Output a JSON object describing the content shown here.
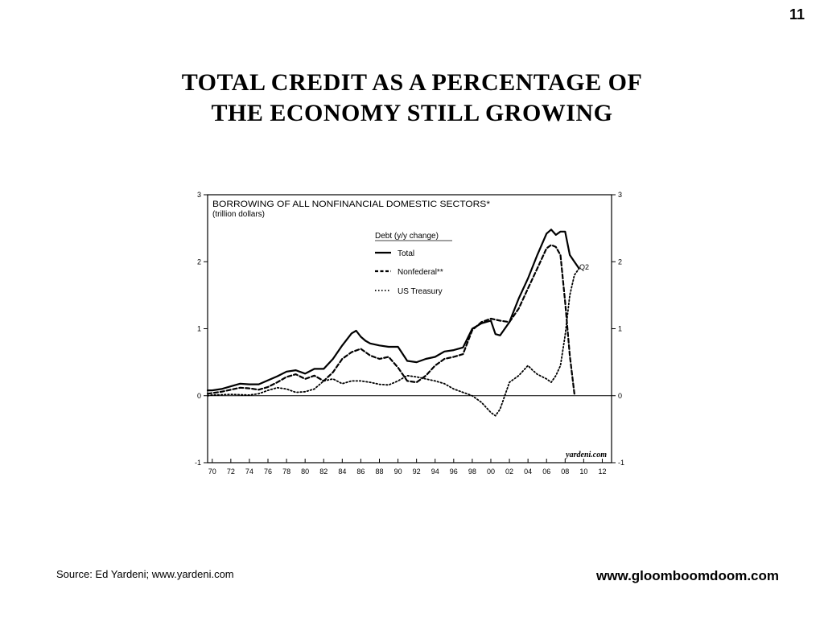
{
  "slide": {
    "number": "11",
    "title_line1": "TOTAL  CREDIT  AS  A  PERCENTAGE  OF",
    "title_line2": "THE  ECONOMY  STILL  GROWING",
    "source": "Source: Ed Yardeni; www.yardeni.com",
    "website": "www.gloomboomdoom.com"
  },
  "chart_data": {
    "type": "line",
    "title": "BORROWING OF ALL NONFINANCIAL DOMESTIC SECTORS*",
    "subtitle": "(trillion dollars)",
    "legend_title": "Debt (y/y change)",
    "legend_position": "top-center",
    "annotation": "Q2",
    "watermark": "yardeni.com",
    "xlabel": "",
    "ylabel": "",
    "xlim": [
      1969.5,
      2013
    ],
    "ylim": [
      -1,
      3
    ],
    "x_ticks": [
      "70",
      "72",
      "74",
      "76",
      "78",
      "80",
      "82",
      "84",
      "86",
      "88",
      "90",
      "92",
      "94",
      "96",
      "98",
      "00",
      "02",
      "04",
      "06",
      "08",
      "10",
      "12"
    ],
    "y_ticks": [
      "-1",
      "0",
      "1",
      "2",
      "3"
    ],
    "grid": false,
    "series": [
      {
        "name": "Total",
        "style": "solid",
        "color": "#000000",
        "x": [
          1969.5,
          1970,
          1971,
          1972,
          1973,
          1974,
          1975,
          1976,
          1977,
          1978,
          1979,
          1980,
          1981,
          1982,
          1983,
          1984,
          1985,
          1985.5,
          1986,
          1986.5,
          1987,
          1988,
          1989,
          1990,
          1991,
          1992,
          1993,
          1994,
          1995,
          1996,
          1997,
          1998,
          1999,
          2000,
          2000.5,
          2001,
          2002,
          2003,
          2004,
          2005,
          2006,
          2006.5,
          2007,
          2007.5,
          2008,
          2008.5,
          2009,
          2009.5
        ],
        "values": [
          0.08,
          0.08,
          0.1,
          0.14,
          0.18,
          0.17,
          0.17,
          0.23,
          0.29,
          0.36,
          0.38,
          0.33,
          0.4,
          0.4,
          0.55,
          0.75,
          0.93,
          0.97,
          0.88,
          0.82,
          0.78,
          0.75,
          0.73,
          0.73,
          0.52,
          0.5,
          0.55,
          0.58,
          0.66,
          0.68,
          0.72,
          1.0,
          1.08,
          1.12,
          0.92,
          0.9,
          1.1,
          1.45,
          1.75,
          2.1,
          2.42,
          2.48,
          2.4,
          2.45,
          2.45,
          2.1,
          2.0,
          1.9
        ]
      },
      {
        "name": "Nonfederal**",
        "style": "dashed",
        "color": "#000000",
        "x": [
          1969.5,
          1970,
          1971,
          1972,
          1973,
          1974,
          1975,
          1976,
          1977,
          1978,
          1979,
          1980,
          1981,
          1982,
          1983,
          1984,
          1985,
          1986,
          1987,
          1988,
          1989,
          1990,
          1991,
          1992,
          1993,
          1994,
          1995,
          1996,
          1997,
          1998,
          1999,
          2000,
          2001,
          2002,
          2003,
          2004,
          2005,
          2006,
          2006.5,
          2007,
          2007.5,
          2008,
          2008.5,
          2009
        ],
        "values": [
          0.03,
          0.04,
          0.06,
          0.09,
          0.12,
          0.11,
          0.09,
          0.13,
          0.2,
          0.28,
          0.32,
          0.25,
          0.3,
          0.22,
          0.35,
          0.55,
          0.65,
          0.7,
          0.6,
          0.55,
          0.58,
          0.42,
          0.22,
          0.2,
          0.3,
          0.45,
          0.55,
          0.58,
          0.62,
          0.98,
          1.1,
          1.15,
          1.12,
          1.1,
          1.3,
          1.6,
          1.9,
          2.2,
          2.25,
          2.22,
          2.1,
          1.4,
          0.6,
          0.03
        ]
      },
      {
        "name": "US Treasury",
        "style": "dotted",
        "color": "#000000",
        "x": [
          1969.5,
          1970,
          1972,
          1974,
          1975,
          1976,
          1977,
          1978,
          1979,
          1980,
          1981,
          1982,
          1983,
          1984,
          1985,
          1986,
          1987,
          1988,
          1989,
          1990,
          1991,
          1992,
          1993,
          1994,
          1995,
          1996,
          1997,
          1998,
          1999,
          2000,
          2000.5,
          2001,
          2002,
          2003,
          2004,
          2004.5,
          2005,
          2006,
          2006.5,
          2007,
          2007.5,
          2008,
          2008.5,
          2009,
          2009.5
        ],
        "values": [
          0.0,
          0.01,
          0.02,
          0.01,
          0.03,
          0.08,
          0.12,
          0.1,
          0.05,
          0.06,
          0.1,
          0.22,
          0.25,
          0.18,
          0.22,
          0.22,
          0.2,
          0.17,
          0.16,
          0.22,
          0.3,
          0.28,
          0.25,
          0.22,
          0.18,
          0.1,
          0.05,
          0.0,
          -0.1,
          -0.25,
          -0.3,
          -0.2,
          0.2,
          0.3,
          0.45,
          0.38,
          0.32,
          0.25,
          0.2,
          0.3,
          0.45,
          0.9,
          1.5,
          1.8,
          1.9
        ]
      }
    ]
  }
}
